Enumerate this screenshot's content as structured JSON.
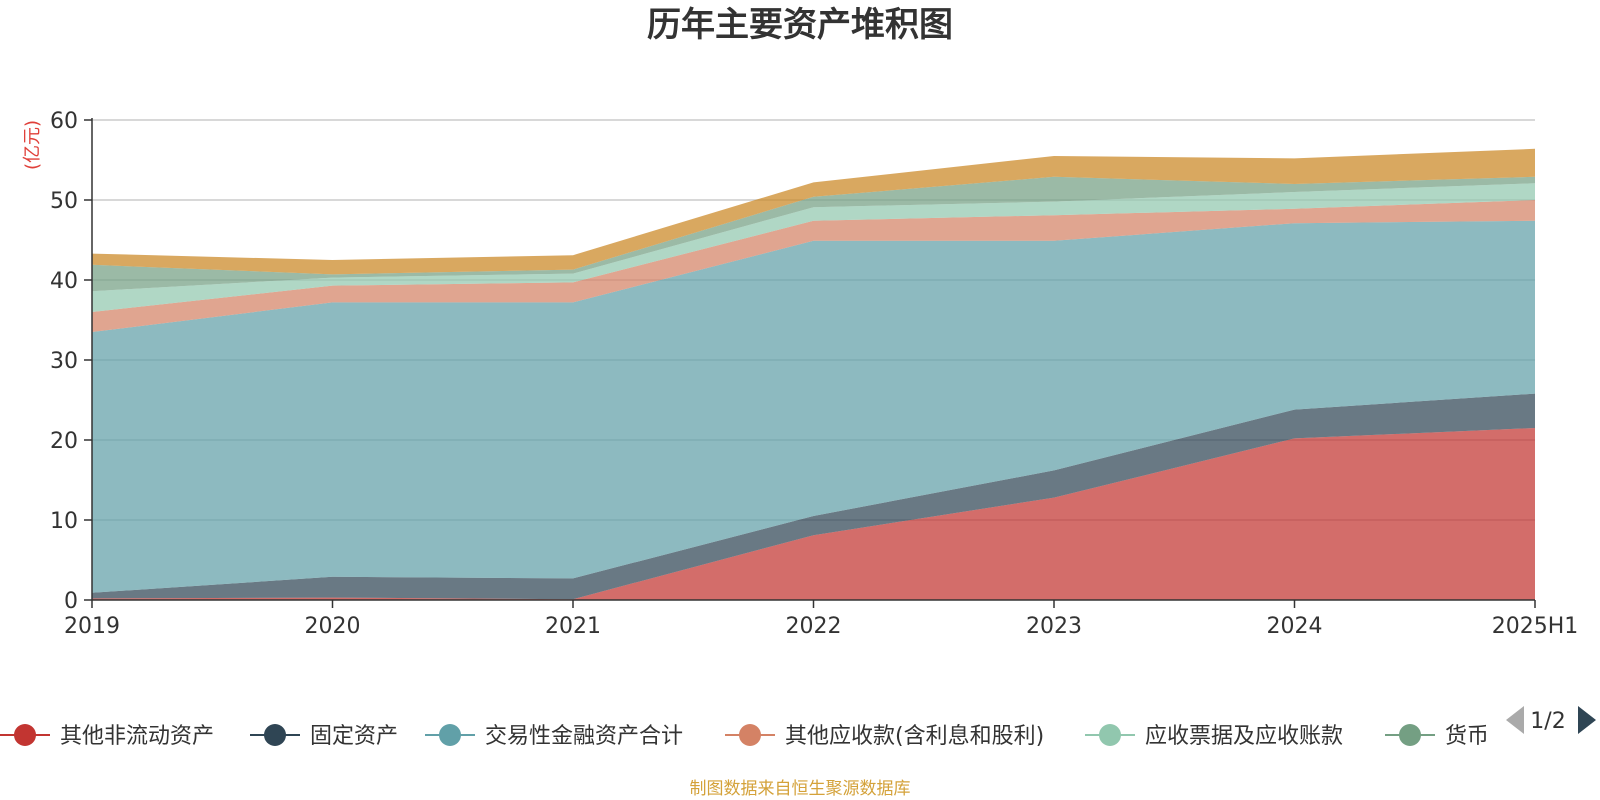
{
  "chart_data": {
    "type": "area",
    "stacked": true,
    "title": "历年主要资产堆积图",
    "unit_label": "(亿元)",
    "categories": [
      "2019",
      "2020",
      "2021",
      "2022",
      "2023",
      "2024",
      "2025H1"
    ],
    "ylim": [
      0,
      60
    ],
    "yticks": [
      0,
      10,
      20,
      30,
      40,
      50,
      60
    ],
    "grid": true,
    "series": [
      {
        "name": "其他非流动资产",
        "color": "#c23531",
        "values": [
          0.2,
          0.3,
          0.1,
          8.1,
          12.8,
          20.2,
          21.5
        ]
      },
      {
        "name": "固定资产",
        "color": "#2f4554",
        "values": [
          0.7,
          2.6,
          2.6,
          2.4,
          3.4,
          3.6,
          4.3
        ]
      },
      {
        "name": "交易性金融资产合计",
        "color": "#61a0a8",
        "values": [
          32.6,
          34.3,
          34.5,
          34.4,
          28.7,
          23.3,
          21.6
        ]
      },
      {
        "name": "其他应收款(含利息和股利)",
        "color": "#d48265",
        "values": [
          2.5,
          2.1,
          2.5,
          2.5,
          3.2,
          1.8,
          2.6
        ]
      },
      {
        "name": "应收票据及应收账款",
        "color": "#91c7ae",
        "values": [
          2.6,
          1.0,
          1.1,
          1.7,
          1.7,
          2.1,
          2.1
        ]
      },
      {
        "name": "货币资金",
        "color": "#749f83",
        "values": [
          3.3,
          0.4,
          0.5,
          1.3,
          3.1,
          1.0,
          0.8
        ]
      },
      {
        "name": "",
        "color": "#ca8622",
        "values": [
          1.4,
          1.8,
          1.8,
          1.8,
          2.6,
          3.2,
          3.5
        ]
      }
    ]
  },
  "legend": {
    "visible_items": [
      {
        "label": "其他非流动资产",
        "color": "#c23531"
      },
      {
        "label": "固定资产",
        "color": "#2f4554"
      },
      {
        "label": "交易性金融资产合计",
        "color": "#61a0a8"
      },
      {
        "label": "其他应收款(含利息和股利)",
        "color": "#d48265"
      },
      {
        "label": "应收票据及应收账款",
        "color": "#91c7ae"
      },
      {
        "label": "货币",
        "color": "#749f83"
      }
    ],
    "page_indicator": "1/2"
  },
  "source_note": "制图数据来自恒生聚源数据库"
}
